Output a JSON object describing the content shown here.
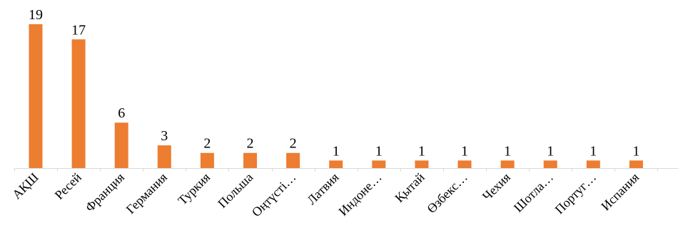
{
  "chart_data": {
    "type": "bar",
    "title": "",
    "xlabel": "",
    "ylabel": "",
    "categories": [
      "АҚШ",
      "Ресей",
      "Франция",
      "Германия",
      "Туркия",
      "Польша",
      "Оңтүсті…",
      "Латвия",
      "Индоне…",
      "Қытай",
      "Өзбекс…",
      "Чехия",
      "Шотла…",
      "Португ…",
      "Испания"
    ],
    "values": [
      19,
      17,
      6,
      3,
      2,
      2,
      2,
      1,
      1,
      1,
      1,
      1,
      1,
      1,
      1
    ],
    "ylim": [
      0,
      19
    ],
    "grid": false,
    "legend": "none",
    "data_labels": true,
    "bar_color": "#ED7D31",
    "axis_color": "#D9D9D9"
  }
}
